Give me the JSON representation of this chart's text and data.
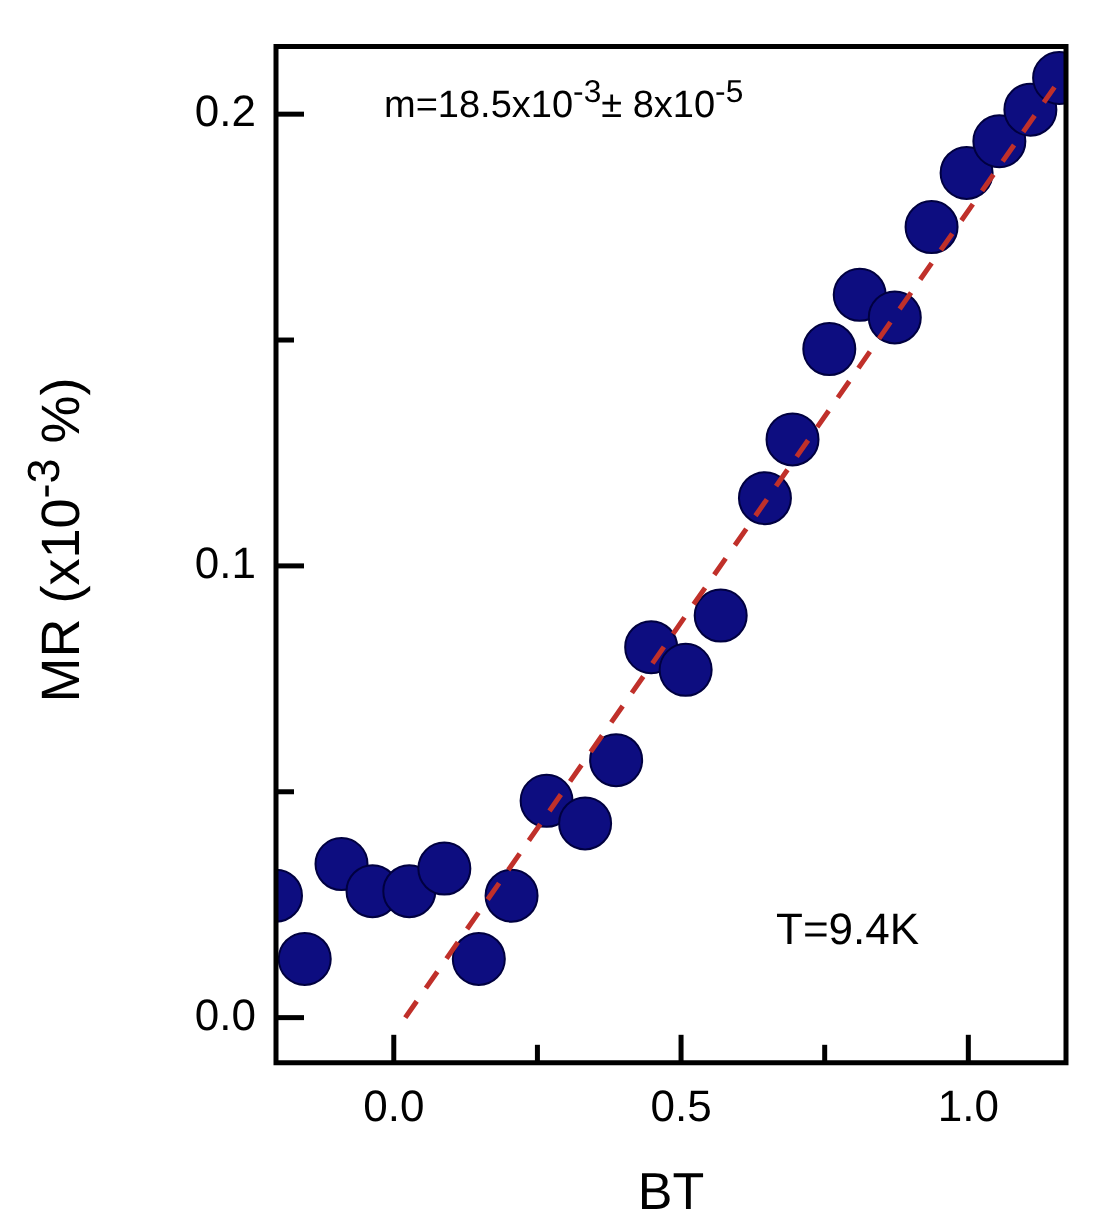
{
  "chart_data": {
    "type": "scatter",
    "xlabel": "BT",
    "ylabel": "MR (x10$^{-3}$ %)",
    "annotations": [
      "m=18.5x10$^{-3}$± 8x10$^{-5}$",
      "T=9.4K"
    ],
    "xlim": [
      -0.205,
      1.17
    ],
    "ylim": [
      -0.01,
      0.215
    ],
    "xticks": [
      {
        "value": 0,
        "label": "0.0"
      },
      {
        "value": 0.25,
        "label": null
      },
      {
        "value": 0.5,
        "label": "0.5"
      },
      {
        "value": 0.75,
        "label": null
      },
      {
        "value": 1,
        "label": "1.0"
      }
    ],
    "yticks": [
      {
        "value": 0,
        "label": "0.0"
      },
      {
        "value": 0.05,
        "label": null
      },
      {
        "value": 0.1,
        "label": "0.1"
      },
      {
        "value": 0.15,
        "label": null
      },
      {
        "value": 0.2,
        "label": "0.2"
      }
    ],
    "grid": false,
    "legend": false,
    "marker": "circle",
    "series": [
      {
        "color": "#0d0d80",
        "x": [
          -0.205,
          -0.155,
          -0.091,
          -0.037,
          0.027,
          0.088,
          0.148,
          0.205,
          0.266,
          0.333,
          0.387,
          0.448,
          0.508,
          0.569,
          0.646,
          0.694,
          0.758,
          0.811,
          0.872,
          0.936,
          0.997,
          1.054,
          1.108,
          1.158
        ],
        "values": [
          0.027,
          0.013,
          0.034,
          0.028,
          0.028,
          0.033,
          0.013,
          0.027,
          0.048,
          0.043,
          0.057,
          0.082,
          0.077,
          0.089,
          0.115,
          0.128,
          0.148,
          0.16,
          0.155,
          0.175,
          0.187,
          0.194,
          0.201,
          0.208
        ]
      },
      {
        "type": "line",
        "color": "#c0302a",
        "marker": "none",
        "line_style": "dashed",
        "x": [
          0.02,
          1.15
        ],
        "values": [
          0,
          0.206
        ]
      }
    ]
  }
}
